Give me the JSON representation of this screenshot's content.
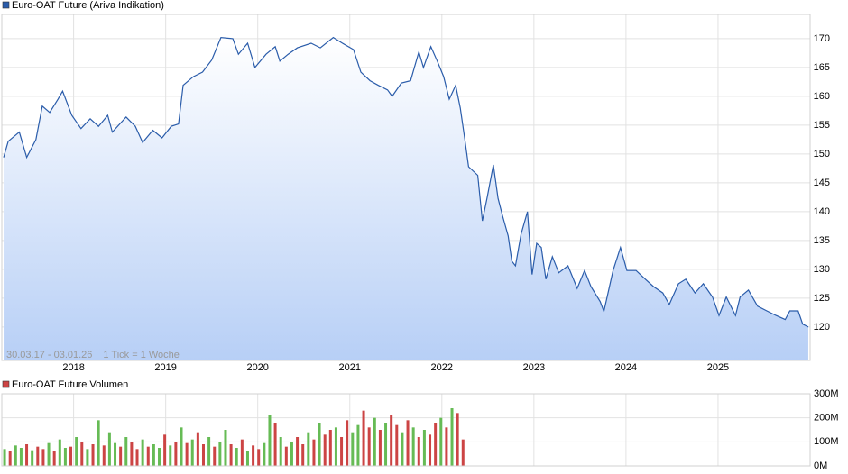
{
  "chart_data": [
    {
      "type": "area",
      "series": [
        {
          "name": "Euro-OAT Future (Ariva Indikation)",
          "color": "#2a5caa",
          "values": [
            149.4,
            152.2,
            153.8,
            149.4,
            152.5,
            158.3,
            157.2,
            159.5,
            160.9,
            156.7,
            154.4,
            156.1,
            154.8,
            156.7,
            153.8,
            156.4,
            154.8,
            152.0,
            154.1,
            152.8,
            154.8,
            155.2,
            161.9,
            163.4,
            164.2,
            166.3,
            170.2,
            170.0,
            167.3,
            169.2,
            165.0,
            167.3,
            168.6,
            166.1,
            167.3,
            168.4,
            169.2,
            168.4,
            170.2,
            169.2,
            168.1,
            164.2,
            162.7,
            161.9,
            161.1,
            160.0,
            162.3,
            162.7,
            167.7,
            165.0,
            168.6,
            166.1,
            163.4,
            159.5,
            161.9,
            158.0,
            152.5,
            147.8,
            146.3,
            138.4,
            142.3,
            148.1,
            142.3,
            139.2,
            135.8,
            131.4,
            130.6,
            136.1,
            140.0,
            129.1,
            134.5,
            133.8,
            128.3,
            132.2,
            129.4,
            130.6,
            126.7,
            129.8,
            127.0,
            124.4,
            122.7,
            129.8,
            133.8,
            129.8,
            129.8,
            128.3,
            127.0,
            125.9,
            123.9,
            127.5,
            128.3,
            125.9,
            127.5,
            125.2,
            122.0,
            125.2,
            122.0,
            125.2,
            126.4,
            123.6,
            122.8,
            122.0,
            121.3,
            122.8,
            122.8,
            120.5,
            120.0
          ]
        }
      ],
      "x": [
        2017.24,
        2017.29,
        2017.41,
        2017.49,
        2017.59,
        2017.66,
        2017.74,
        2017.83,
        2017.88,
        2017.98,
        2018.08,
        2018.18,
        2018.27,
        2018.37,
        2018.42,
        2018.57,
        2018.67,
        2018.75,
        2018.86,
        2018.96,
        2019.06,
        2019.14,
        2019.19,
        2019.3,
        2019.4,
        2019.5,
        2019.6,
        2019.73,
        2019.79,
        2019.89,
        2019.97,
        2020.09,
        2020.19,
        2020.24,
        2020.33,
        2020.43,
        2020.58,
        2020.68,
        2020.82,
        2020.92,
        2021.04,
        2021.12,
        2021.22,
        2021.31,
        2021.41,
        2021.46,
        2021.56,
        2021.66,
        2021.75,
        2021.8,
        2021.88,
        2021.95,
        2022.02,
        2022.08,
        2022.15,
        2022.2,
        2022.25,
        2022.29,
        2022.39,
        2022.44,
        2022.49,
        2022.56,
        2022.61,
        2022.66,
        2022.72,
        2022.76,
        2022.8,
        2022.86,
        2022.93,
        2022.98,
        2023.03,
        2023.08,
        2023.13,
        2023.2,
        2023.27,
        2023.37,
        2023.47,
        2023.55,
        2023.62,
        2023.72,
        2023.76,
        2023.86,
        2023.94,
        2024.01,
        2024.11,
        2024.21,
        2024.3,
        2024.4,
        2024.47,
        2024.57,
        2024.65,
        2024.75,
        2024.84,
        2024.94,
        2025.01,
        2025.09,
        2025.19,
        2025.24,
        2025.33,
        2025.43,
        2025.53,
        2025.63,
        2025.73,
        2025.78,
        2025.87,
        2025.92,
        2025.98
      ],
      "xlim": [
        2017.22,
        2026.0
      ],
      "xticks": [
        2018,
        2019,
        2020,
        2021,
        2022,
        2023,
        2024,
        2025
      ],
      "ylim": [
        114.2,
        174.2
      ],
      "yticks": [
        120,
        125,
        130,
        135,
        140,
        145,
        150,
        155,
        160,
        165,
        170
      ],
      "grid": true,
      "date_range": "30.03.17 - 03.01.26",
      "tick_note": "1 Tick = 1 Woche",
      "watermark": "ARIVA.DE"
    },
    {
      "type": "bar",
      "series": [
        {
          "name": "Euro-OAT Future Volumen",
          "color": "#cc4444",
          "values": [
            70,
            60,
            85,
            75,
            90,
            65,
            80,
            70,
            95,
            60,
            110,
            75,
            80,
            120,
            100,
            70,
            90,
            190,
            85,
            140,
            95,
            80,
            120,
            100,
            70,
            110,
            80,
            90,
            75,
            130,
            85,
            100,
            160,
            95,
            110,
            140,
            90,
            120,
            80,
            100,
            150,
            90,
            75,
            110,
            60,
            85,
            70,
            95,
            210,
            180,
            120,
            80,
            100,
            120,
            90,
            140,
            110,
            180,
            130,
            150,
            160,
            120,
            190,
            140,
            170,
            230,
            160,
            200,
            150,
            180,
            210,
            170,
            140,
            190,
            160,
            120,
            150,
            130,
            180,
            200,
            160,
            240,
            220,
            110
          ],
          "colors": [
            "#66bb55",
            "#cc4444",
            "#66bb55",
            "#66bb55",
            "#cc4444",
            "#66bb55",
            "#cc4444",
            "#cc4444",
            "#66bb55",
            "#cc4444",
            "#66bb55",
            "#66bb55",
            "#cc4444",
            "#66bb55",
            "#cc4444",
            "#66bb55",
            "#cc4444",
            "#66bb55",
            "#cc4444",
            "#66bb55",
            "#66bb55",
            "#cc4444",
            "#66bb55",
            "#cc4444",
            "#cc4444",
            "#66bb55",
            "#cc4444",
            "#66bb55",
            "#66bb55",
            "#cc4444",
            "#66bb55",
            "#cc4444",
            "#66bb55",
            "#cc4444",
            "#66bb55",
            "#cc4444",
            "#cc4444",
            "#66bb55",
            "#cc4444",
            "#66bb55",
            "#66bb55",
            "#cc4444",
            "#66bb55",
            "#cc4444",
            "#66bb55",
            "#cc4444",
            "#cc4444",
            "#66bb55",
            "#66bb55",
            "#cc4444",
            "#66bb55",
            "#cc4444",
            "#66bb55",
            "#cc4444",
            "#cc4444",
            "#66bb55",
            "#cc4444",
            "#66bb55",
            "#cc4444",
            "#cc4444",
            "#66bb55",
            "#cc4444",
            "#cc4444",
            "#66bb55",
            "#66bb55",
            "#cc4444",
            "#cc4444",
            "#66bb55",
            "#cc4444",
            "#66bb55",
            "#cc4444",
            "#cc4444",
            "#66bb55",
            "#cc4444",
            "#66bb55",
            "#cc4444",
            "#66bb55",
            "#cc4444",
            "#cc4444",
            "#66bb55",
            "#cc4444",
            "#66bb55",
            "#cc4444",
            "#cc4444"
          ]
        }
      ],
      "x": [
        2017.25,
        2017.31,
        2017.37,
        2017.43,
        2017.49,
        2017.55,
        2017.61,
        2017.67,
        2017.73,
        2017.79,
        2017.85,
        2017.91,
        2017.97,
        2018.03,
        2018.09,
        2018.15,
        2018.21,
        2018.27,
        2018.33,
        2018.39,
        2018.45,
        2018.51,
        2018.57,
        2018.63,
        2018.69,
        2018.75,
        2018.81,
        2018.87,
        2018.93,
        2018.99,
        2019.05,
        2019.11,
        2019.17,
        2019.23,
        2019.29,
        2019.35,
        2019.41,
        2019.47,
        2019.53,
        2019.59,
        2019.65,
        2019.71,
        2019.77,
        2019.83,
        2019.89,
        2019.95,
        2020.01,
        2020.07,
        2020.13,
        2020.19,
        2020.25,
        2020.31,
        2020.37,
        2020.43,
        2020.49,
        2020.55,
        2020.61,
        2020.67,
        2020.73,
        2020.79,
        2020.85,
        2020.91,
        2020.97,
        2021.03,
        2021.09,
        2021.15,
        2021.21,
        2021.27,
        2021.33,
        2021.39,
        2021.45,
        2021.51,
        2021.57,
        2021.63,
        2021.69,
        2021.75,
        2021.81,
        2021.87,
        2021.93,
        2021.99,
        2022.05,
        2022.11,
        2022.17,
        2022.23
      ],
      "xlim": [
        2017.22,
        2026.0
      ],
      "xticks": [
        2018,
        2019,
        2020,
        2021,
        2022,
        2023,
        2024,
        2025
      ],
      "ylim": [
        0,
        300
      ],
      "yticks": [
        {
          "value": 0,
          "label": "0M"
        },
        {
          "value": 100,
          "label": "100M"
        },
        {
          "value": 200,
          "label": "200M"
        },
        {
          "value": 300,
          "label": "300M"
        }
      ],
      "grid": true
    }
  ]
}
